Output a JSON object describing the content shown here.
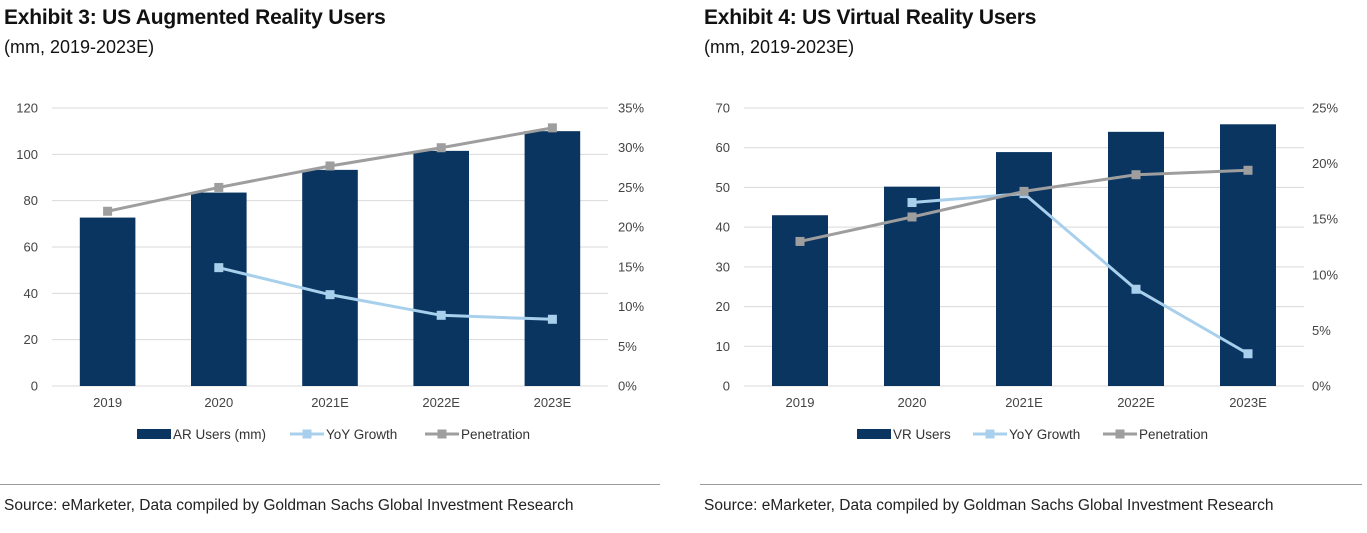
{
  "exhibits": [
    {
      "title": "Exhibit 3: US Augmented Reality Users",
      "subtitle": "(mm, 2019-2023E)",
      "source": "Source: eMarketer, Data compiled by Goldman Sachs Global Investment Research"
    },
    {
      "title": "Exhibit 4: US Virtual Reality Users",
      "subtitle": "(mm, 2019-2023E)",
      "source": "Source: eMarketer, Data compiled by Goldman Sachs Global Investment Research"
    }
  ],
  "colors": {
    "bar": "#0b3561",
    "yoy": "#a8d0ec",
    "penetration": "#9e9e9e",
    "grid": "#d9d9d9"
  },
  "chart_data": [
    {
      "type": "bar",
      "categories": [
        "2019",
        "2020",
        "2021E",
        "2022E",
        "2023E"
      ],
      "series": [
        {
          "name": "AR Users (mm)",
          "kind": "bar",
          "axis": "left",
          "values": [
            72.7,
            83.5,
            93.3,
            101.5,
            110.0
          ]
        },
        {
          "name": "YoY Growth",
          "kind": "line",
          "axis": "right",
          "values": [
            null,
            0.149,
            0.115,
            0.089,
            0.084
          ]
        },
        {
          "name": "Penetration",
          "kind": "line",
          "axis": "right",
          "values": [
            0.22,
            0.25,
            0.277,
            0.3,
            0.325
          ]
        }
      ],
      "left_axis": {
        "ylim": [
          0,
          120
        ],
        "ticks": [
          "0",
          "20",
          "40",
          "60",
          "80",
          "100",
          "120"
        ]
      },
      "right_axis": {
        "ylim": [
          0,
          0.35
        ],
        "ticks": [
          "0%",
          "5%",
          "10%",
          "15%",
          "20%",
          "25%",
          "30%",
          "35%"
        ]
      },
      "grid": true,
      "legend_position": "bottom"
    },
    {
      "type": "bar",
      "categories": [
        "2019",
        "2020",
        "2021E",
        "2022E",
        "2023E"
      ],
      "series": [
        {
          "name": "VR Users",
          "kind": "bar",
          "axis": "left",
          "values": [
            43.0,
            50.2,
            58.9,
            64.0,
            65.9
          ]
        },
        {
          "name": "YoY Growth",
          "kind": "line",
          "axis": "right",
          "values": [
            null,
            0.165,
            0.173,
            0.087,
            0.029
          ]
        },
        {
          "name": "Penetration",
          "kind": "line",
          "axis": "right",
          "values": [
            0.13,
            0.152,
            0.175,
            0.19,
            0.194
          ]
        }
      ],
      "left_axis": {
        "ylim": [
          0,
          70
        ],
        "ticks": [
          "0",
          "10",
          "20",
          "30",
          "40",
          "50",
          "60",
          "70"
        ]
      },
      "right_axis": {
        "ylim": [
          0,
          0.25
        ],
        "ticks": [
          "0%",
          "5%",
          "10%",
          "15%",
          "20%",
          "25%"
        ]
      },
      "grid": true,
      "legend_position": "bottom"
    }
  ]
}
